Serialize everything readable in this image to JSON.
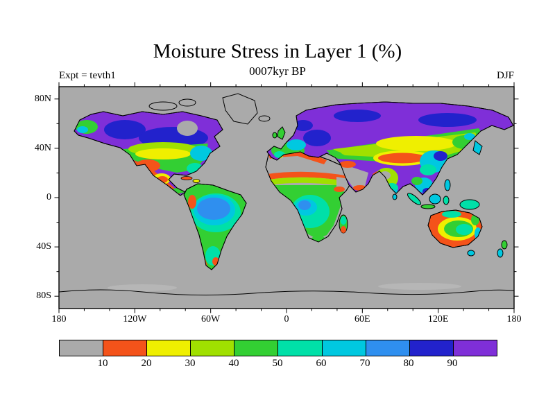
{
  "chart_data": {
    "type": "heatmap",
    "title": "Moisture Stress in Layer 1 (%)",
    "subtitle": "0007kyr BP",
    "experiment_label": "Expt = tevth1",
    "season_label": "DJF",
    "axes": {
      "lat_tick_labels": [
        "80N",
        "40N",
        "0",
        "40S",
        "80S"
      ],
      "lon_tick_labels": [
        "180",
        "120W",
        "60W",
        "0",
        "60E",
        "120E",
        "180"
      ],
      "lon_range_deg": [
        -180,
        180
      ],
      "lat_range_deg": [
        90,
        -90
      ]
    },
    "colorbar": {
      "value_range": [
        0,
        100
      ],
      "bin_size": 10,
      "bin_labels": [
        "10",
        "20",
        "30",
        "40",
        "50",
        "60",
        "70",
        "80",
        "90"
      ],
      "bin_colors": [
        "#aaaaaa",
        "#f4531a",
        "#efef00",
        "#a0e000",
        "#33cf33",
        "#00e0a8",
        "#00c8e0",
        "#2f8fef",
        "#2222cc",
        "#7f2fd8"
      ]
    },
    "colors": {
      "background": "#ffffff",
      "ocean_and_low_values": "#aaaaaa",
      "frame": "#000000",
      "sea_ice_patch": "#b6b6b6"
    },
    "visual_summary": {
      "90_to_100_purple": "Alaska, northern Canada, Scandinavia, Siberia",
      "70_to_90_blue": "southern Canada, eastern Europe, patches of Siberia, Amazon and Congo cores, east China",
      "40_to_70_green_teal_cyan": "USA, Europe, central Asia band, equatorial Africa, South America, eastern Australia, southeast Asia",
      "10_to_40_orange_yellow": "Mexico and southwest USA, Sahel, Mediterranean coast of Africa, Tibet band, western India, central Australia, Chilean coast",
      "under_10_gray": "oceans, Greenland, Sahara, Arabian Peninsula, Horn of Africa, Antarctica"
    }
  }
}
